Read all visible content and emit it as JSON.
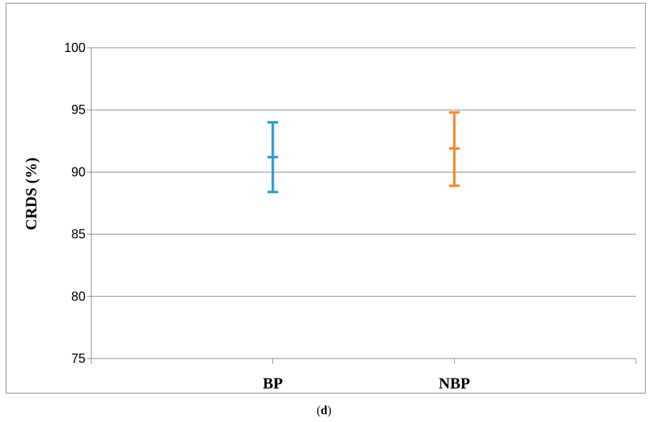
{
  "caption": {
    "open": "(",
    "letter": "d",
    "close": ")"
  },
  "chart_data": {
    "type": "error-bar",
    "title": "",
    "xlabel": "",
    "ylabel": "CRDS (%)",
    "categories": [
      "BP",
      "NBP"
    ],
    "ylim": [
      75,
      100
    ],
    "yticks": [
      75,
      80,
      85,
      90,
      95,
      100
    ],
    "grid": true,
    "legend": "none",
    "series": [
      {
        "category": "BP",
        "low": 88.4,
        "mid": 91.2,
        "high": 94.0,
        "color": "#2e9bd0"
      },
      {
        "category": "NBP",
        "low": 88.9,
        "mid": 91.9,
        "high": 94.8,
        "color": "#f28a2e"
      }
    ]
  }
}
